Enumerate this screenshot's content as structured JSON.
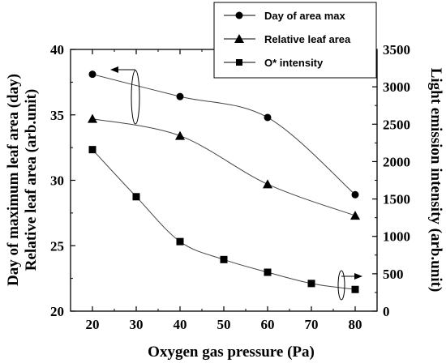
{
  "chart_data": {
    "type": "scatter",
    "xlabel": "Oxygen gas pressure (Pa)",
    "ylabel_left_line1": "Day of maximum leaf area (day)",
    "ylabel_left_line2": "Relative leaf area (arb.unit)",
    "ylabel_right": "Light emission intensity (arb.unit)",
    "x_ticks": [
      "20",
      "30",
      "40",
      "50",
      "60",
      "70",
      "80"
    ],
    "y_left_ticks": [
      "20",
      "25",
      "30",
      "35",
      "40"
    ],
    "y_right_ticks": [
      "0",
      "500",
      "1000",
      "1500",
      "2000",
      "2500",
      "3000",
      "3500"
    ],
    "xlim": [
      15,
      85
    ],
    "ylim_left": [
      20,
      40
    ],
    "ylim_right": [
      0,
      3500
    ],
    "series": [
      {
        "name": "Day of area max",
        "marker": "circle",
        "axis": "left",
        "x": [
          20,
          40,
          60,
          80
        ],
        "y": [
          38.1,
          36.4,
          34.8,
          28.9
        ]
      },
      {
        "name": "Relative leaf area",
        "marker": "triangle",
        "axis": "left",
        "x": [
          20,
          40,
          60,
          80
        ],
        "y": [
          34.7,
          33.4,
          29.7,
          27.3
        ]
      },
      {
        "name": "O* intensity",
        "marker": "square",
        "axis": "right",
        "x": [
          20,
          30,
          40,
          50,
          60,
          70,
          80
        ],
        "y": [
          2160,
          1530,
          930,
          690,
          520,
          370,
          290
        ]
      }
    ],
    "legend_position": "top-right",
    "grid": false
  }
}
